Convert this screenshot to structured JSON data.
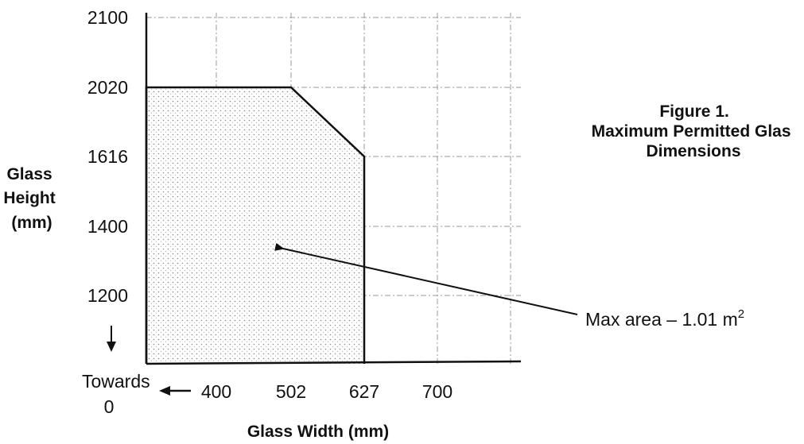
{
  "chart_data": {
    "type": "area",
    "figure_title_lines": [
      "Figure 1.",
      "Maximum Permitted Glas",
      "Dimensions"
    ],
    "xlabel": "Glass Width (mm)",
    "ylabel_lines": [
      "Glass",
      "Height",
      "(mm)"
    ],
    "x_ticks": [
      "400",
      "502",
      "627",
      "700"
    ],
    "y_ticks": [
      "2100",
      "2020",
      "1616",
      "1400",
      "1200"
    ],
    "x_towards_zero_lines": [
      "Towards",
      "0"
    ],
    "grid": true,
    "fill_color": "#cfcfcf",
    "series": [
      {
        "x": [
          0,
          0,
          502,
          627,
          627
        ],
        "y": [
          0,
          2020,
          2020,
          1616,
          0
        ]
      }
    ],
    "annotation": {
      "text": "Max area – 1.01 m",
      "superscript": "2",
      "points_to": {
        "x": 502,
        "y": 1400
      }
    }
  }
}
